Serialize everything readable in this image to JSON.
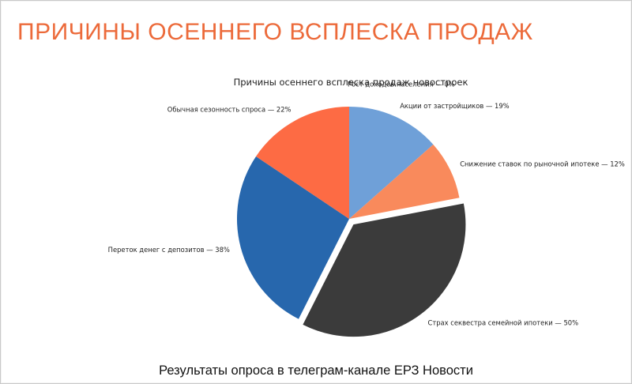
{
  "slide": {
    "title": "ПРИЧИНЫ ОСЕННЕГО ВСПЛЕСКА ПРОДАЖ",
    "caption": "Результаты опроса в телеграм-канале ЕРЗ Новости",
    "accent_color": "#ec6a3a"
  },
  "chart_data": {
    "type": "pie",
    "title": "Причины осеннего всплеска продаж новостроек",
    "slices": [
      {
        "label": "Рост доходов населения — 0%",
        "value": 0,
        "color": "#6fa0d8",
        "exploded": false
      },
      {
        "label": "Акции от застройщиков — 19%",
        "value": 19,
        "color": "#6fa0d8",
        "exploded": false
      },
      {
        "label": "Снижение ставок по рыночной ипотеке — 12%",
        "value": 12,
        "color": "#f98a5c",
        "exploded": false
      },
      {
        "label": "Страх секвестра семейной ипотеки — 50%",
        "value": 50,
        "color": "#3b3b3b",
        "exploded": true
      },
      {
        "label": "Переток денег с депозитов — 38%",
        "value": 38,
        "color": "#2767ad",
        "exploded": false
      },
      {
        "label": "Обычная сезонность спроса — 22%",
        "value": 22,
        "color": "#fd6b44",
        "exploded": false
      }
    ],
    "start_angle": "12 o'clock",
    "direction": "clockwise",
    "legend": "none (labels beside slices)"
  }
}
